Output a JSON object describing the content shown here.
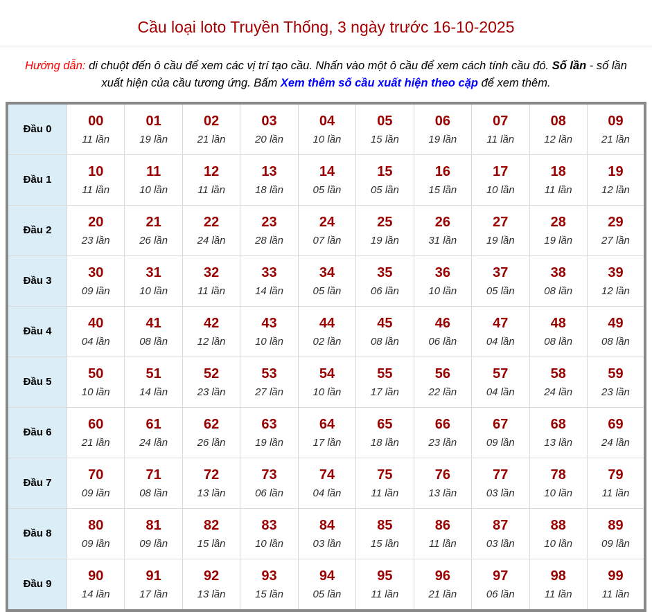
{
  "page": {
    "title": "Cầu loại loto Truyền Thống, 3 ngày trước 16-10-2025"
  },
  "instructions": {
    "label": "Hướng dẫn:",
    "part1": " di chuột đến ô cầu để xem các vị trí tạo cầu. Nhấn vào một ô cầu để xem cách tính cầu đó. ",
    "bold_term": "Số lần",
    "part2": " - số lần xuất hiện của cầu tương ứng. Bấm ",
    "link_text": "Xem thêm số cầu xuất hiện theo cặp",
    "part3": " để xem thêm."
  },
  "colors": {
    "title_text": "#a50000",
    "cell_number": "#990000",
    "instruction_label": "#ff0000",
    "link": "#0000ff",
    "row_header_bg": "#dbeef7",
    "outer_border": "#888888"
  },
  "table": {
    "unit_label": "lần",
    "rows": [
      {
        "label": "Đầu 0",
        "cells": [
          {
            "num": "00",
            "count": "11"
          },
          {
            "num": "01",
            "count": "19"
          },
          {
            "num": "02",
            "count": "21"
          },
          {
            "num": "03",
            "count": "20"
          },
          {
            "num": "04",
            "count": "10"
          },
          {
            "num": "05",
            "count": "15"
          },
          {
            "num": "06",
            "count": "19"
          },
          {
            "num": "07",
            "count": "11"
          },
          {
            "num": "08",
            "count": "12"
          },
          {
            "num": "09",
            "count": "21"
          }
        ]
      },
      {
        "label": "Đầu 1",
        "cells": [
          {
            "num": "10",
            "count": "11"
          },
          {
            "num": "11",
            "count": "10"
          },
          {
            "num": "12",
            "count": "11"
          },
          {
            "num": "13",
            "count": "18"
          },
          {
            "num": "14",
            "count": "05"
          },
          {
            "num": "15",
            "count": "05"
          },
          {
            "num": "16",
            "count": "15"
          },
          {
            "num": "17",
            "count": "10"
          },
          {
            "num": "18",
            "count": "11"
          },
          {
            "num": "19",
            "count": "12"
          }
        ]
      },
      {
        "label": "Đầu 2",
        "cells": [
          {
            "num": "20",
            "count": "23"
          },
          {
            "num": "21",
            "count": "26"
          },
          {
            "num": "22",
            "count": "24"
          },
          {
            "num": "23",
            "count": "28"
          },
          {
            "num": "24",
            "count": "07"
          },
          {
            "num": "25",
            "count": "19"
          },
          {
            "num": "26",
            "count": "31"
          },
          {
            "num": "27",
            "count": "19"
          },
          {
            "num": "28",
            "count": "19"
          },
          {
            "num": "29",
            "count": "27"
          }
        ]
      },
      {
        "label": "Đầu 3",
        "cells": [
          {
            "num": "30",
            "count": "09"
          },
          {
            "num": "31",
            "count": "10"
          },
          {
            "num": "32",
            "count": "11"
          },
          {
            "num": "33",
            "count": "14"
          },
          {
            "num": "34",
            "count": "05"
          },
          {
            "num": "35",
            "count": "06"
          },
          {
            "num": "36",
            "count": "10"
          },
          {
            "num": "37",
            "count": "05"
          },
          {
            "num": "38",
            "count": "08"
          },
          {
            "num": "39",
            "count": "12"
          }
        ]
      },
      {
        "label": "Đầu 4",
        "cells": [
          {
            "num": "40",
            "count": "04"
          },
          {
            "num": "41",
            "count": "08"
          },
          {
            "num": "42",
            "count": "12"
          },
          {
            "num": "43",
            "count": "10"
          },
          {
            "num": "44",
            "count": "02"
          },
          {
            "num": "45",
            "count": "08"
          },
          {
            "num": "46",
            "count": "06"
          },
          {
            "num": "47",
            "count": "04"
          },
          {
            "num": "48",
            "count": "08"
          },
          {
            "num": "49",
            "count": "08"
          }
        ]
      },
      {
        "label": "Đầu 5",
        "cells": [
          {
            "num": "50",
            "count": "10"
          },
          {
            "num": "51",
            "count": "14"
          },
          {
            "num": "52",
            "count": "23"
          },
          {
            "num": "53",
            "count": "27"
          },
          {
            "num": "54",
            "count": "10"
          },
          {
            "num": "55",
            "count": "17"
          },
          {
            "num": "56",
            "count": "22"
          },
          {
            "num": "57",
            "count": "04"
          },
          {
            "num": "58",
            "count": "24"
          },
          {
            "num": "59",
            "count": "23"
          }
        ]
      },
      {
        "label": "Đầu 6",
        "cells": [
          {
            "num": "60",
            "count": "21"
          },
          {
            "num": "61",
            "count": "24"
          },
          {
            "num": "62",
            "count": "26"
          },
          {
            "num": "63",
            "count": "19"
          },
          {
            "num": "64",
            "count": "17"
          },
          {
            "num": "65",
            "count": "18"
          },
          {
            "num": "66",
            "count": "23"
          },
          {
            "num": "67",
            "count": "09"
          },
          {
            "num": "68",
            "count": "13"
          },
          {
            "num": "69",
            "count": "24"
          }
        ]
      },
      {
        "label": "Đầu 7",
        "cells": [
          {
            "num": "70",
            "count": "09"
          },
          {
            "num": "71",
            "count": "08"
          },
          {
            "num": "72",
            "count": "13"
          },
          {
            "num": "73",
            "count": "06"
          },
          {
            "num": "74",
            "count": "04"
          },
          {
            "num": "75",
            "count": "11"
          },
          {
            "num": "76",
            "count": "13"
          },
          {
            "num": "77",
            "count": "03"
          },
          {
            "num": "78",
            "count": "10"
          },
          {
            "num": "79",
            "count": "11"
          }
        ]
      },
      {
        "label": "Đầu 8",
        "cells": [
          {
            "num": "80",
            "count": "09"
          },
          {
            "num": "81",
            "count": "09"
          },
          {
            "num": "82",
            "count": "15"
          },
          {
            "num": "83",
            "count": "10"
          },
          {
            "num": "84",
            "count": "03"
          },
          {
            "num": "85",
            "count": "15"
          },
          {
            "num": "86",
            "count": "11"
          },
          {
            "num": "87",
            "count": "03"
          },
          {
            "num": "88",
            "count": "10"
          },
          {
            "num": "89",
            "count": "09"
          }
        ]
      },
      {
        "label": "Đầu 9",
        "cells": [
          {
            "num": "90",
            "count": "14"
          },
          {
            "num": "91",
            "count": "17"
          },
          {
            "num": "92",
            "count": "13"
          },
          {
            "num": "93",
            "count": "15"
          },
          {
            "num": "94",
            "count": "05"
          },
          {
            "num": "95",
            "count": "11"
          },
          {
            "num": "96",
            "count": "21"
          },
          {
            "num": "97",
            "count": "06"
          },
          {
            "num": "98",
            "count": "11"
          },
          {
            "num": "99",
            "count": "11"
          }
        ]
      }
    ]
  }
}
